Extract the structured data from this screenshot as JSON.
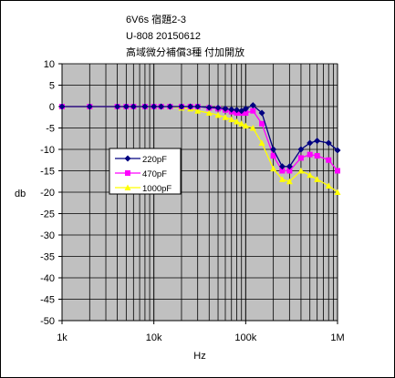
{
  "chart_data": {
    "type": "line",
    "title_lines": [
      "6V6s 宿題2-3",
      "U-808 20150612",
      "高域微分補償3種 付加開放"
    ],
    "xlabel": "Hz",
    "ylabel": "db",
    "x_scale": "log",
    "xlim": [
      1000,
      1000000
    ],
    "ylim": [
      -50,
      10
    ],
    "x_tick_values": [
      1000,
      10000,
      100000,
      1000000
    ],
    "x_tick_labels": [
      "1k",
      "10k",
      "100k",
      "1M"
    ],
    "y_ticks": [
      10,
      5,
      0,
      -5,
      -10,
      -15,
      -20,
      -25,
      -30,
      -35,
      -40,
      -45,
      -50
    ],
    "grid": true,
    "legend_position": "left-middle",
    "plot_background": "#c0c0c0",
    "series": [
      {
        "name": "220pF",
        "color": "#000080",
        "marker": "diamond",
        "x": [
          1000,
          2000,
          4000,
          5000,
          6000,
          8000,
          10000,
          12000,
          15000,
          20000,
          25000,
          30000,
          40000,
          50000,
          60000,
          70000,
          80000,
          90000,
          100000,
          120000,
          150000,
          200000,
          250000,
          300000,
          400000,
          500000,
          600000,
          800000,
          1000000
        ],
        "y": [
          0,
          0,
          0,
          0,
          0,
          0,
          0,
          0,
          0,
          0,
          0,
          0,
          -0.2,
          -0.3,
          -0.5,
          -0.7,
          -0.8,
          -1.0,
          -0.5,
          0.3,
          -1.5,
          -10.0,
          -14.0,
          -14.0,
          -10.0,
          -8.5,
          -8.0,
          -8.5,
          -10.2
        ]
      },
      {
        "name": "470pF",
        "color": "#ff00ff",
        "marker": "square",
        "x": [
          1000,
          2000,
          4000,
          5000,
          6000,
          8000,
          10000,
          12000,
          15000,
          20000,
          25000,
          30000,
          40000,
          50000,
          60000,
          70000,
          80000,
          90000,
          100000,
          120000,
          150000,
          200000,
          250000,
          300000,
          400000,
          500000,
          600000,
          800000,
          1000000
        ],
        "y": [
          0,
          0,
          0,
          0,
          0,
          0,
          0,
          0,
          0,
          0,
          0,
          0,
          -0.3,
          -0.5,
          -0.8,
          -1.2,
          -1.5,
          -1.5,
          -1.5,
          -1.0,
          -4.0,
          -11.5,
          -15.0,
          -15.0,
          -12.0,
          -11.2,
          -11.5,
          -12.5,
          -15.0
        ]
      },
      {
        "name": "1000pF",
        "color": "#ffff00",
        "marker": "triangle",
        "x": [
          1000,
          2000,
          4000,
          5000,
          6000,
          8000,
          10000,
          12000,
          15000,
          20000,
          25000,
          30000,
          40000,
          50000,
          60000,
          70000,
          80000,
          90000,
          100000,
          120000,
          150000,
          200000,
          250000,
          300000,
          400000,
          500000,
          600000,
          800000,
          1000000
        ],
        "y": [
          0,
          0,
          0,
          0,
          0,
          0,
          0,
          0,
          0,
          -0.3,
          -0.5,
          -1.0,
          -1.5,
          -2.0,
          -2.5,
          -3.0,
          -3.5,
          -4.0,
          -4.5,
          -5.0,
          -8.5,
          -14.5,
          -17.0,
          -17.5,
          -15.0,
          -16.0,
          -17.0,
          -18.5,
          -20.0
        ]
      }
    ]
  }
}
